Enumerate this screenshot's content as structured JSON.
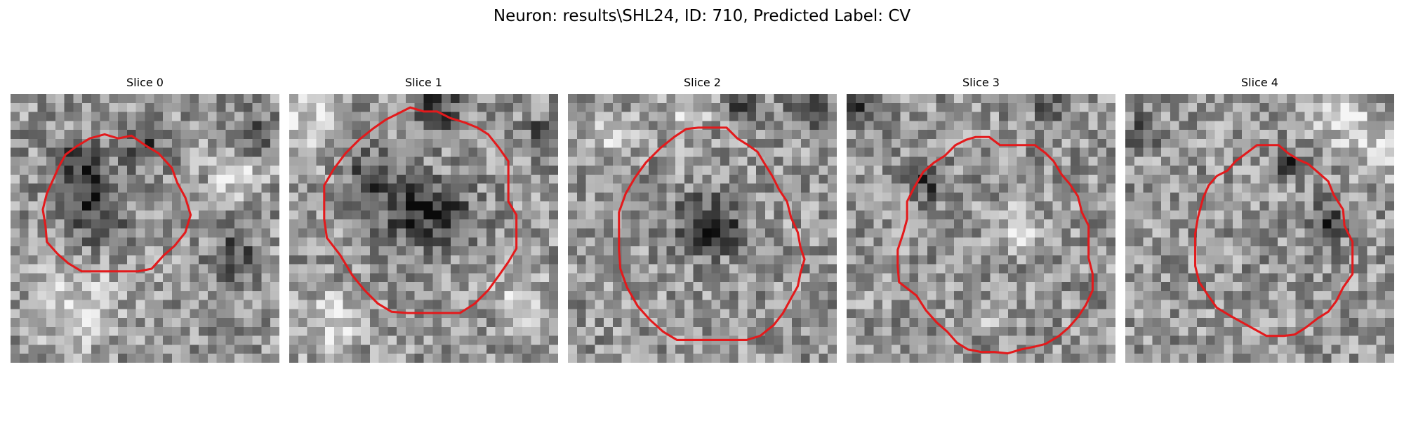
{
  "figure": {
    "title": "Neuron: results\\SHL24, ID: 710, Predicted Label: CV"
  },
  "outline_color": "#e31a1c",
  "panels": [
    {
      "title": "Slice 0",
      "seed": 11,
      "outline": [
        [
          7,
          3
        ],
        [
          8,
          3.3
        ],
        [
          9,
          3.1
        ],
        [
          10,
          3.8
        ],
        [
          11,
          4.4
        ],
        [
          12,
          5.5
        ],
        [
          12.4,
          6.6
        ],
        [
          13,
          7.7
        ],
        [
          13.4,
          9
        ],
        [
          13,
          10.3
        ],
        [
          12.2,
          11.3
        ],
        [
          11.4,
          12
        ],
        [
          10.5,
          13
        ],
        [
          9.5,
          13.2
        ],
        [
          8,
          13.2
        ],
        [
          6.5,
          13.2
        ],
        [
          5.3,
          13.2
        ],
        [
          4.3,
          12.6
        ],
        [
          3.5,
          11.9
        ],
        [
          2.7,
          11
        ],
        [
          2.6,
          9.8
        ],
        [
          2.4,
          8.6
        ],
        [
          2.7,
          7.4
        ],
        [
          3.2,
          6.3
        ],
        [
          3.6,
          5.4
        ],
        [
          4.1,
          4.5
        ],
        [
          4.9,
          3.9
        ],
        [
          5.9,
          3.3
        ]
      ],
      "dark_spots": [
        [
          6,
          8.6,
          2.4
        ],
        [
          5,
          5.5,
          2
        ],
        [
          10,
          4,
          1.5
        ],
        [
          18,
          3,
          1.4
        ],
        [
          16.5,
          12,
          1.6
        ]
      ],
      "light_spots": [
        [
          5,
          16,
          3
        ],
        [
          17,
          6,
          2
        ]
      ]
    },
    {
      "title": "Slice 1",
      "seed": 29,
      "outline": [
        [
          8,
          1.5
        ],
        [
          9,
          1
        ],
        [
          10,
          1.3
        ],
        [
          11,
          1.3
        ],
        [
          12,
          1.8
        ],
        [
          13,
          2.1
        ],
        [
          14,
          2.5
        ],
        [
          14.8,
          3
        ],
        [
          15.6,
          4
        ],
        [
          16.3,
          5
        ],
        [
          16.3,
          6.5
        ],
        [
          16.3,
          8
        ],
        [
          16.9,
          9
        ],
        [
          16.9,
          10.3
        ],
        [
          16.9,
          11.5
        ],
        [
          16.3,
          12.5
        ],
        [
          15.6,
          13.5
        ],
        [
          14.8,
          14.6
        ],
        [
          13.8,
          15.6
        ],
        [
          12.7,
          16.3
        ],
        [
          11.3,
          16.3
        ],
        [
          10,
          16.3
        ],
        [
          8.8,
          16.3
        ],
        [
          7.6,
          16.2
        ],
        [
          6.6,
          15.6
        ],
        [
          5.6,
          14.6
        ],
        [
          4.7,
          13.5
        ],
        [
          3.8,
          12
        ],
        [
          2.8,
          10.7
        ],
        [
          2.6,
          9.3
        ],
        [
          2.6,
          8
        ],
        [
          2.6,
          6.8
        ],
        [
          3.3,
          5.6
        ],
        [
          4.2,
          4.4
        ],
        [
          5.2,
          3.4
        ],
        [
          6.2,
          2.6
        ],
        [
          7.2,
          1.9
        ]
      ],
      "dark_spots": [
        [
          11,
          1,
          2
        ],
        [
          9,
          8.8,
          2.5
        ],
        [
          12,
          9,
          2
        ],
        [
          19,
          3,
          1.2
        ],
        [
          6,
          6,
          1.5
        ]
      ],
      "light_spots": [
        [
          3,
          17,
          2.5
        ],
        [
          17,
          15,
          2
        ],
        [
          1,
          2,
          2.5
        ]
      ]
    },
    {
      "title": "Slice 2",
      "seed": 53,
      "outline": [
        [
          9.7,
          2.5
        ],
        [
          10.7,
          2.5
        ],
        [
          11.8,
          2.5
        ],
        [
          12.6,
          3.3
        ],
        [
          13.4,
          3.8
        ],
        [
          14.1,
          4.3
        ],
        [
          14.7,
          5.3
        ],
        [
          15.2,
          6.1
        ],
        [
          15.7,
          7.1
        ],
        [
          16.3,
          8
        ],
        [
          16.6,
          9.2
        ],
        [
          17.1,
          10.3
        ],
        [
          17.3,
          11.4
        ],
        [
          17.6,
          12.3
        ],
        [
          17.3,
          13.3
        ],
        [
          17.1,
          14.3
        ],
        [
          16.6,
          15.2
        ],
        [
          16,
          16.3
        ],
        [
          15.3,
          17.2
        ],
        [
          14.3,
          18
        ],
        [
          13.3,
          18.3
        ],
        [
          12,
          18.3
        ],
        [
          10.7,
          18.3
        ],
        [
          9.3,
          18.3
        ],
        [
          8.1,
          18.3
        ],
        [
          7.1,
          17.7
        ],
        [
          6.1,
          16.8
        ],
        [
          5.2,
          15.8
        ],
        [
          4.4,
          14.4
        ],
        [
          3.9,
          13
        ],
        [
          3.8,
          11.6
        ],
        [
          3.8,
          10.2
        ],
        [
          3.8,
          8.8
        ],
        [
          4.3,
          7.4
        ],
        [
          5,
          6.2
        ],
        [
          5.8,
          5.1
        ],
        [
          6.9,
          4
        ],
        [
          7.9,
          3.2
        ],
        [
          8.8,
          2.6
        ]
      ],
      "dark_spots": [
        [
          10,
          9.6,
          2
        ],
        [
          18,
          1,
          1.5
        ],
        [
          13,
          1,
          1.2
        ],
        [
          11.5,
          10.2,
          1.5
        ]
      ],
      "light_spots": [
        [
          9,
          0.5,
          2
        ],
        [
          3,
          3,
          1.8
        ]
      ]
    },
    {
      "title": "Slice 3",
      "seed": 71,
      "outline": [
        [
          9.6,
          3.2
        ],
        [
          10.6,
          3.2
        ],
        [
          11.4,
          3.8
        ],
        [
          12.2,
          3.8
        ],
        [
          13,
          3.8
        ],
        [
          14,
          3.8
        ],
        [
          14.8,
          4.4
        ],
        [
          15.4,
          5
        ],
        [
          16,
          6
        ],
        [
          16.6,
          6.7
        ],
        [
          17.2,
          7.6
        ],
        [
          17.5,
          8.8
        ],
        [
          18,
          9.8
        ],
        [
          18,
          11
        ],
        [
          18,
          12.2
        ],
        [
          18.3,
          13.4
        ],
        [
          18.3,
          14.6
        ],
        [
          17.8,
          15.7
        ],
        [
          17.2,
          16.6
        ],
        [
          16.5,
          17.4
        ],
        [
          15.8,
          18
        ],
        [
          14.8,
          18.6
        ],
        [
          14,
          18.8
        ],
        [
          13,
          19
        ],
        [
          12,
          19.3
        ],
        [
          11,
          19.2
        ],
        [
          10,
          19.2
        ],
        [
          9,
          19
        ],
        [
          8.2,
          18.5
        ],
        [
          7.5,
          17.7
        ],
        [
          6.7,
          17
        ],
        [
          5.9,
          16.1
        ],
        [
          5.2,
          15
        ],
        [
          3.9,
          14
        ],
        [
          3.8,
          12.8
        ],
        [
          3.8,
          11.6
        ],
        [
          4.2,
          10.4
        ],
        [
          4.5,
          9.3
        ],
        [
          4.5,
          8
        ],
        [
          5,
          7
        ],
        [
          5.7,
          5.8
        ],
        [
          6.5,
          5.1
        ],
        [
          7.3,
          4.6
        ],
        [
          8.1,
          3.8
        ],
        [
          8.9,
          3.4
        ]
      ],
      "dark_spots": [
        [
          1,
          0.5,
          1.2
        ],
        [
          15,
          0.5,
          1.3
        ],
        [
          6,
          6.5,
          1.3
        ]
      ],
      "light_spots": [
        [
          12.5,
          10,
          1.5
        ],
        [
          11,
          16.5,
          0.8
        ]
      ]
    },
    {
      "title": "Slice 4",
      "seed": 97,
      "outline": [
        [
          9.8,
          3.8
        ],
        [
          10.6,
          3.8
        ],
        [
          11.4,
          3.8
        ],
        [
          12.1,
          4.4
        ],
        [
          12.9,
          4.9
        ],
        [
          13.6,
          5.2
        ],
        [
          14.3,
          5.8
        ],
        [
          15.1,
          6.5
        ],
        [
          15.5,
          7.5
        ],
        [
          16.2,
          8.6
        ],
        [
          16.3,
          9.8
        ],
        [
          16.9,
          11
        ],
        [
          16.9,
          12.2
        ],
        [
          16.9,
          13.4
        ],
        [
          16.2,
          14.4
        ],
        [
          15.7,
          15.4
        ],
        [
          15.1,
          16.2
        ],
        [
          14.3,
          16.7
        ],
        [
          13.4,
          17.4
        ],
        [
          12.6,
          17.9
        ],
        [
          11.8,
          18
        ],
        [
          10.5,
          18
        ],
        [
          9.6,
          17.5
        ],
        [
          8.7,
          17
        ],
        [
          7.8,
          16.5
        ],
        [
          6.8,
          15.9
        ],
        [
          6.1,
          14.9
        ],
        [
          5.5,
          14
        ],
        [
          5.2,
          12.8
        ],
        [
          5.2,
          11.6
        ],
        [
          5.2,
          10.4
        ],
        [
          5.4,
          9.2
        ],
        [
          5.8,
          7.7
        ],
        [
          6.2,
          6.8
        ],
        [
          6.8,
          6.1
        ],
        [
          7.6,
          5.7
        ],
        [
          8.2,
          5
        ],
        [
          9,
          4.4
        ]
      ],
      "dark_spots": [
        [
          12,
          5,
          1
        ],
        [
          15,
          9.5,
          1.5
        ],
        [
          1,
          3,
          1.2
        ]
      ],
      "light_spots": [
        [
          16,
          1,
          2.5
        ],
        [
          19,
          4,
          2
        ]
      ]
    }
  ]
}
